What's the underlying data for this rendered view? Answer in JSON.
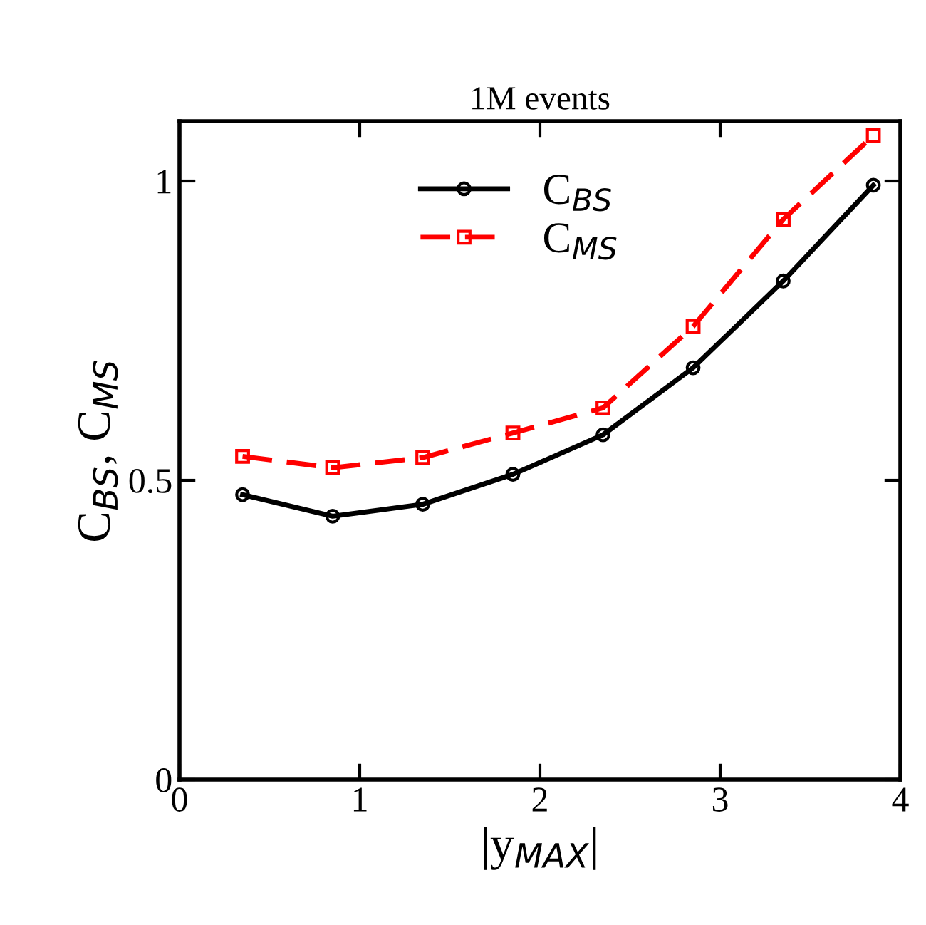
{
  "chart_data": {
    "type": "line",
    "title": "1M events",
    "xlabel": "|y$_{MAX}$|",
    "ylabel": "C$_{BS}$, C$_{MS}$",
    "x": [
      0.35,
      0.85,
      1.35,
      1.85,
      2.35,
      2.85,
      3.35,
      3.85
    ],
    "series": [
      {
        "name": "C$_{BS}$",
        "color": "#000000",
        "marker": "circle",
        "line_style": "solid",
        "values": [
          0.476,
          0.44,
          0.46,
          0.51,
          0.576,
          0.688,
          0.833,
          0.993
        ]
      },
      {
        "name": "C$_{MS}$",
        "color": "#ff0000",
        "marker": "square",
        "line_style": "dashed",
        "values": [
          0.54,
          0.521,
          0.538,
          0.579,
          0.621,
          0.757,
          0.936,
          1.076
        ]
      }
    ],
    "xlim": [
      0,
      4
    ],
    "ylim": [
      0,
      1.1
    ],
    "xticks": [
      0,
      1,
      2,
      3,
      4
    ],
    "yticks": [
      0,
      0.5,
      1
    ],
    "grid": false,
    "legend": "top left"
  }
}
